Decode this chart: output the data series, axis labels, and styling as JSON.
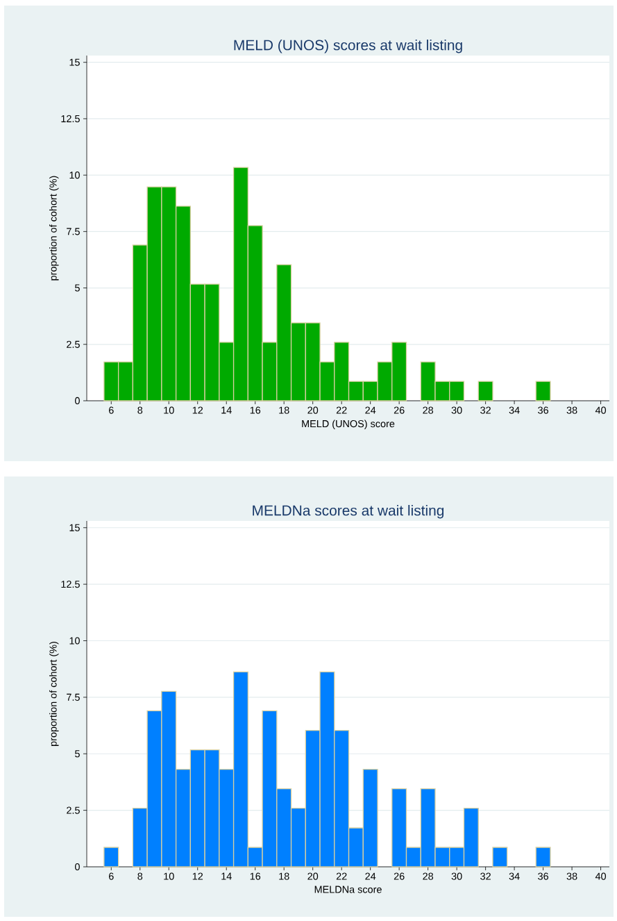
{
  "chart_data": [
    {
      "type": "histogram",
      "title": "MELD (UNOS) scores at wait listing",
      "xlabel": "MELD (UNOS) score",
      "ylabel": "proportion of cohort (%)",
      "color": "#00aa00",
      "bins": [
        5.5,
        6.5,
        7.5,
        8.5,
        9.5,
        10.5,
        11.5,
        12.5,
        13.5,
        14.5,
        15.5,
        16.5,
        17.5,
        18.5,
        19.5,
        20.5,
        21.5,
        22.5,
        23.5,
        24.5,
        25.5,
        26.5,
        27.5,
        28.5,
        29.5,
        30.5,
        31.5,
        32.5,
        33.5,
        34.5,
        35.5,
        36.5
      ],
      "values": [
        1.72,
        1.72,
        6.9,
        9.48,
        9.48,
        8.62,
        5.17,
        5.17,
        2.59,
        10.34,
        7.76,
        2.59,
        6.03,
        3.45,
        3.45,
        1.72,
        2.59,
        0.86,
        0.86,
        1.72,
        2.59,
        0,
        1.72,
        0.86,
        0.86,
        0,
        0.86,
        0,
        0,
        0,
        0.86
      ],
      "xlim": [
        4.3,
        40.6
      ],
      "ylim": [
        0,
        15.3
      ],
      "xticks": [
        6,
        8,
        10,
        12,
        14,
        16,
        18,
        20,
        22,
        24,
        26,
        28,
        30,
        32,
        34,
        36,
        38,
        40
      ],
      "yticks": [
        0,
        2.5,
        5,
        7.5,
        10,
        12.5,
        15
      ],
      "grid": "y"
    },
    {
      "type": "histogram",
      "title": "MELDNa scores at wait listing",
      "xlabel": "MELDNa score",
      "ylabel": "proportion of cohort (%)",
      "color": "#0080ff",
      "bins": [
        5.5,
        6.5,
        7.5,
        8.5,
        9.5,
        10.5,
        11.5,
        12.5,
        13.5,
        14.5,
        15.5,
        16.5,
        17.5,
        18.5,
        19.5,
        20.5,
        21.5,
        22.5,
        23.5,
        24.5,
        25.5,
        26.5,
        27.5,
        28.5,
        29.5,
        30.5,
        31.5,
        32.5,
        33.5,
        34.5,
        35.5,
        36.5
      ],
      "values": [
        0.86,
        0,
        2.59,
        6.9,
        7.76,
        4.31,
        5.17,
        5.17,
        4.31,
        8.62,
        0.86,
        6.9,
        3.45,
        2.59,
        6.03,
        8.62,
        6.03,
        1.72,
        4.31,
        0,
        3.45,
        0.86,
        3.45,
        0.86,
        0.86,
        2.59,
        0,
        0.86,
        0,
        0,
        0.86
      ],
      "xlim": [
        4.3,
        40.6
      ],
      "ylim": [
        0,
        15.3
      ],
      "xticks": [
        6,
        8,
        10,
        12,
        14,
        16,
        18,
        20,
        22,
        24,
        26,
        28,
        30,
        32,
        34,
        36,
        38,
        40
      ],
      "yticks": [
        0,
        2.5,
        5,
        7.5,
        10,
        12.5,
        15
      ],
      "grid": "y"
    }
  ]
}
